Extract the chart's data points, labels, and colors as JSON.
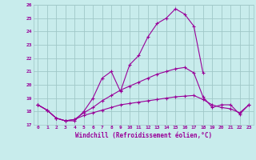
{
  "xlabel": "Windchill (Refroidissement éolien,°C)",
  "background_color": "#c8ecec",
  "grid_color": "#a0c8c8",
  "line_color": "#990099",
  "x": [
    0,
    1,
    2,
    3,
    4,
    5,
    6,
    7,
    8,
    9,
    10,
    11,
    12,
    13,
    14,
    15,
    16,
    17,
    18,
    19,
    20,
    21,
    22,
    23
  ],
  "line1": [
    18.5,
    18.1,
    17.5,
    17.3,
    17.3,
    18.0,
    19.0,
    20.5,
    21.0,
    19.5,
    21.5,
    22.2,
    23.6,
    24.6,
    25.0,
    25.7,
    25.3,
    24.4,
    20.9,
    null,
    null,
    null,
    null,
    null
  ],
  "line2": [
    18.5,
    18.1,
    17.5,
    17.3,
    17.4,
    17.9,
    18.3,
    18.8,
    19.2,
    19.6,
    19.9,
    20.2,
    20.5,
    20.8,
    21.0,
    21.2,
    21.3,
    20.9,
    19.1,
    18.3,
    18.5,
    18.5,
    17.8,
    18.5
  ],
  "line3": [
    18.5,
    18.1,
    17.5,
    17.3,
    17.4,
    17.7,
    17.9,
    18.1,
    18.3,
    18.5,
    18.6,
    18.7,
    18.8,
    18.9,
    19.0,
    19.1,
    19.15,
    19.2,
    18.9,
    18.5,
    18.3,
    18.2,
    17.9,
    18.5
  ],
  "ylim": [
    17,
    26
  ],
  "yticks": [
    17,
    18,
    19,
    20,
    21,
    22,
    23,
    24,
    25,
    26
  ],
  "xlim": [
    -0.5,
    23.5
  ]
}
